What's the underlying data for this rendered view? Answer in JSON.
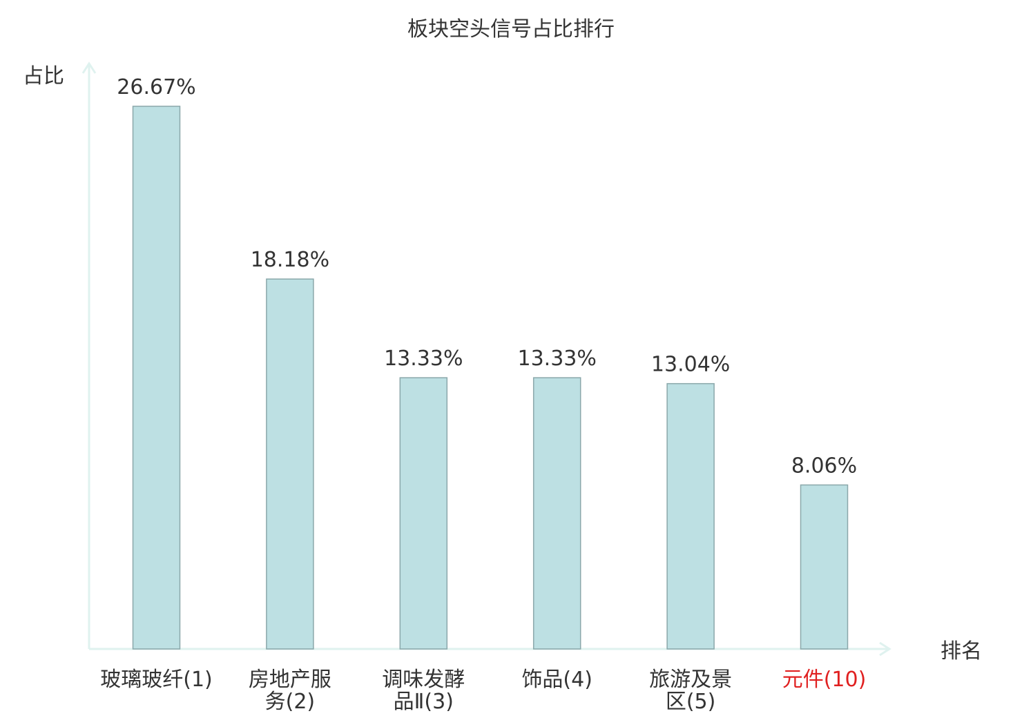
{
  "chart_data": {
    "type": "bar",
    "title": "板块空头信号占比排行",
    "ylabel": "占比",
    "xlabel": "排名",
    "ylim": [
      0,
      28.5
    ],
    "grid": false,
    "legend": "none",
    "categories": [
      [
        "玻璃玻纤(1)"
      ],
      [
        "房地产服",
        "务(2)"
      ],
      [
        "调味发酵",
        "品Ⅱ(3)"
      ],
      [
        "饰品(4)"
      ],
      [
        "旅游及景",
        "区(5)"
      ],
      [
        "元件(10)"
      ]
    ],
    "values": [
      26.67,
      18.18,
      13.33,
      13.33,
      13.04,
      8.06
    ],
    "value_labels": [
      "26.67%",
      "18.18%",
      "13.33%",
      "13.33%",
      "13.04%",
      "8.06%"
    ],
    "highlight_index": 5
  },
  "colors": {
    "bar_fill": "#bde0e3",
    "bar_stroke": "#8aa7aa",
    "axis": "#dff2ef",
    "text": "#333333",
    "highlight": "#e02020"
  }
}
